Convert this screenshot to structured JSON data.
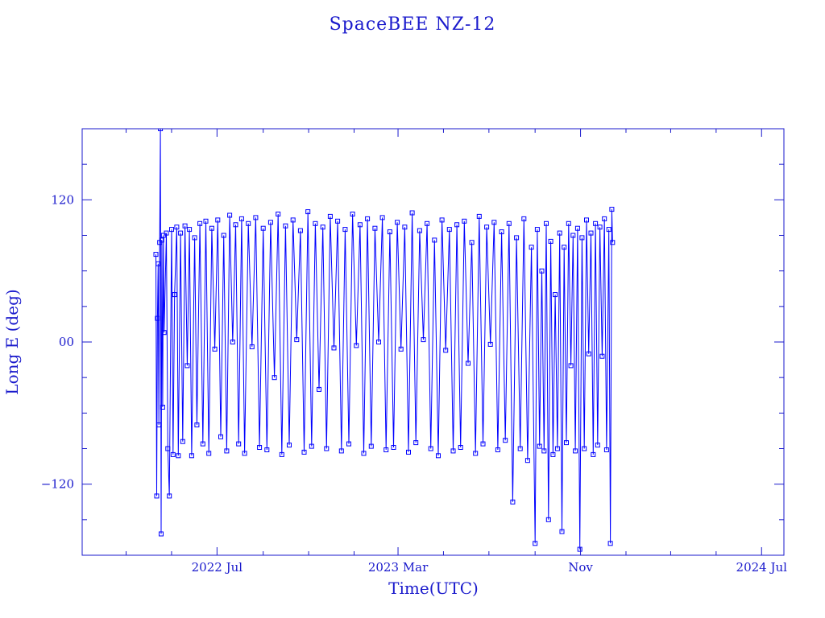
{
  "chart_data": {
    "type": "scatter",
    "title": "SpaceBEE NZ-12",
    "xlabel": "Time(UTC)",
    "ylabel": "Long E (deg)",
    "xlim": [
      "2022-01-01",
      "2024-07-31"
    ],
    "ylim": [
      -180,
      180
    ],
    "x_ticks": [
      {
        "date": "2022-07-01",
        "label": "2022 Jul"
      },
      {
        "date": "2023-03-01",
        "label": "2023 Mar"
      },
      {
        "date": "2023-11-01",
        "label": "Nov"
      },
      {
        "date": "2024-07-01",
        "label": "2024 Jul"
      }
    ],
    "y_ticks": [
      {
        "value": 120,
        "label": "120"
      },
      {
        "value": 0,
        "label": "00"
      },
      {
        "value": -120,
        "label": "−120"
      }
    ],
    "x_minor_tick_dates": [
      "2022-03-01",
      "2022-05-01",
      "2022-09-01",
      "2022-11-01",
      "2023-01-01",
      "2023-05-01",
      "2023-07-01",
      "2023-09-01",
      "2024-01-01",
      "2024-03-01",
      "2024-05-01"
    ],
    "y_minor_ticks": [
      150,
      90,
      60,
      30,
      -30,
      -60,
      -90,
      -150
    ],
    "series": [
      {
        "color": "#0000ff",
        "marker": "square",
        "points": [
          [
            "2022-04-10",
            74
          ],
          [
            "2022-04-11",
            -130
          ],
          [
            "2022-04-12",
            20
          ],
          [
            "2022-04-13",
            66
          ],
          [
            "2022-04-14",
            -70
          ],
          [
            "2022-04-15",
            84
          ],
          [
            "2022-04-16",
            180
          ],
          [
            "2022-04-17",
            -162
          ],
          [
            "2022-04-18",
            86
          ],
          [
            "2022-04-19",
            -55
          ],
          [
            "2022-04-20",
            90
          ],
          [
            "2022-04-21",
            8
          ],
          [
            "2022-04-24",
            92
          ],
          [
            "2022-04-26",
            -90
          ],
          [
            "2022-04-28",
            -130
          ],
          [
            "2022-05-01",
            95
          ],
          [
            "2022-05-03",
            -95
          ],
          [
            "2022-05-05",
            40
          ],
          [
            "2022-05-08",
            97
          ],
          [
            "2022-05-10",
            -96
          ],
          [
            "2022-05-13",
            92
          ],
          [
            "2022-05-16",
            -84
          ],
          [
            "2022-05-19",
            98
          ],
          [
            "2022-05-22",
            -20
          ],
          [
            "2022-05-25",
            95
          ],
          [
            "2022-05-28",
            -96
          ],
          [
            "2022-06-01",
            88
          ],
          [
            "2022-06-04",
            -70
          ],
          [
            "2022-06-08",
            100
          ],
          [
            "2022-06-12",
            -86
          ],
          [
            "2022-06-16",
            102
          ],
          [
            "2022-06-20",
            -94
          ],
          [
            "2022-06-24",
            96
          ],
          [
            "2022-06-28",
            -6
          ],
          [
            "2022-07-02",
            103
          ],
          [
            "2022-07-06",
            -80
          ],
          [
            "2022-07-10",
            90
          ],
          [
            "2022-07-14",
            -92
          ],
          [
            "2022-07-18",
            107
          ],
          [
            "2022-07-22",
            0
          ],
          [
            "2022-07-26",
            99
          ],
          [
            "2022-07-30",
            -86
          ],
          [
            "2022-08-03",
            104
          ],
          [
            "2022-08-07",
            -94
          ],
          [
            "2022-08-12",
            100
          ],
          [
            "2022-08-17",
            -4
          ],
          [
            "2022-08-22",
            105
          ],
          [
            "2022-08-27",
            -89
          ],
          [
            "2022-09-01",
            96
          ],
          [
            "2022-09-06",
            -91
          ],
          [
            "2022-09-11",
            101
          ],
          [
            "2022-09-16",
            -30
          ],
          [
            "2022-09-21",
            108
          ],
          [
            "2022-09-26",
            -95
          ],
          [
            "2022-10-01",
            98
          ],
          [
            "2022-10-06",
            -87
          ],
          [
            "2022-10-11",
            103
          ],
          [
            "2022-10-16",
            2
          ],
          [
            "2022-10-21",
            94
          ],
          [
            "2022-10-26",
            -93
          ],
          [
            "2022-10-31",
            110
          ],
          [
            "2022-11-05",
            -88
          ],
          [
            "2022-11-10",
            100
          ],
          [
            "2022-11-15",
            -40
          ],
          [
            "2022-11-20",
            97
          ],
          [
            "2022-11-25",
            -90
          ],
          [
            "2022-11-30",
            106
          ],
          [
            "2022-12-05",
            -5
          ],
          [
            "2022-12-10",
            102
          ],
          [
            "2022-12-15",
            -92
          ],
          [
            "2022-12-20",
            95
          ],
          [
            "2022-12-25",
            -86
          ],
          [
            "2022-12-30",
            108
          ],
          [
            "2023-01-04",
            -3
          ],
          [
            "2023-01-09",
            99
          ],
          [
            "2023-01-14",
            -94
          ],
          [
            "2023-01-19",
            104
          ],
          [
            "2023-01-24",
            -88
          ],
          [
            "2023-01-29",
            96
          ],
          [
            "2023-02-03",
            0
          ],
          [
            "2023-02-08",
            105
          ],
          [
            "2023-02-13",
            -91
          ],
          [
            "2023-02-18",
            93
          ],
          [
            "2023-02-23",
            -89
          ],
          [
            "2023-02-28",
            101
          ],
          [
            "2023-03-05",
            -6
          ],
          [
            "2023-03-10",
            97
          ],
          [
            "2023-03-15",
            -93
          ],
          [
            "2023-03-20",
            109
          ],
          [
            "2023-03-25",
            -85
          ],
          [
            "2023-03-30",
            94
          ],
          [
            "2023-04-04",
            2
          ],
          [
            "2023-04-09",
            100
          ],
          [
            "2023-04-14",
            -90
          ],
          [
            "2023-04-19",
            86
          ],
          [
            "2023-04-24",
            -96
          ],
          [
            "2023-04-29",
            103
          ],
          [
            "2023-05-04",
            -7
          ],
          [
            "2023-05-09",
            95
          ],
          [
            "2023-05-14",
            -92
          ],
          [
            "2023-05-19",
            99
          ],
          [
            "2023-05-24",
            -89
          ],
          [
            "2023-05-29",
            102
          ],
          [
            "2023-06-03",
            -18
          ],
          [
            "2023-06-08",
            84
          ],
          [
            "2023-06-13",
            -94
          ],
          [
            "2023-06-18",
            106
          ],
          [
            "2023-06-23",
            -86
          ],
          [
            "2023-06-28",
            97
          ],
          [
            "2023-07-03",
            -2
          ],
          [
            "2023-07-08",
            101
          ],
          [
            "2023-07-13",
            -91
          ],
          [
            "2023-07-18",
            93
          ],
          [
            "2023-07-23",
            -83
          ],
          [
            "2023-07-28",
            100
          ],
          [
            "2023-08-02",
            -135
          ],
          [
            "2023-08-07",
            88
          ],
          [
            "2023-08-12",
            -90
          ],
          [
            "2023-08-17",
            104
          ],
          [
            "2023-08-22",
            -100
          ],
          [
            "2023-08-27",
            80
          ],
          [
            "2023-09-01",
            -170
          ],
          [
            "2023-09-04",
            95
          ],
          [
            "2023-09-07",
            -88
          ],
          [
            "2023-09-10",
            60
          ],
          [
            "2023-09-13",
            -92
          ],
          [
            "2023-09-16",
            100
          ],
          [
            "2023-09-19",
            -150
          ],
          [
            "2023-09-22",
            85
          ],
          [
            "2023-09-25",
            -95
          ],
          [
            "2023-09-28",
            40
          ],
          [
            "2023-10-01",
            -90
          ],
          [
            "2023-10-04",
            92
          ],
          [
            "2023-10-07",
            -160
          ],
          [
            "2023-10-10",
            80
          ],
          [
            "2023-10-13",
            -85
          ],
          [
            "2023-10-16",
            100
          ],
          [
            "2023-10-19",
            -20
          ],
          [
            "2023-10-22",
            90
          ],
          [
            "2023-10-25",
            -92
          ],
          [
            "2023-10-28",
            96
          ],
          [
            "2023-10-31",
            -175
          ],
          [
            "2023-11-03",
            88
          ],
          [
            "2023-11-06",
            -90
          ],
          [
            "2023-11-09",
            103
          ],
          [
            "2023-11-12",
            -10
          ],
          [
            "2023-11-15",
            92
          ],
          [
            "2023-11-18",
            -95
          ],
          [
            "2023-11-21",
            100
          ],
          [
            "2023-11-24",
            -87
          ],
          [
            "2023-11-27",
            97
          ],
          [
            "2023-11-30",
            -12
          ],
          [
            "2023-12-03",
            104
          ],
          [
            "2023-12-06",
            -91
          ],
          [
            "2023-12-09",
            95
          ],
          [
            "2023-12-11",
            -170
          ],
          [
            "2023-12-13",
            112
          ],
          [
            "2023-12-14",
            84
          ]
        ]
      }
    ]
  }
}
